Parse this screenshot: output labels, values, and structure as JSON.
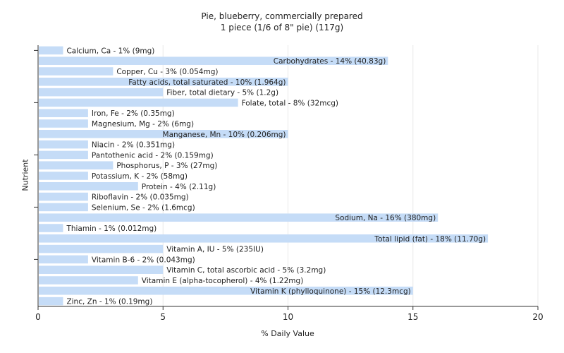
{
  "chart_data": {
    "type": "bar",
    "orientation": "horizontal",
    "title": "Pie, blueberry, commercially prepared",
    "subtitle": "1 piece (1/6 of 8\" pie) (117g)",
    "xlabel": "% Daily Value",
    "ylabel": "Nutrient",
    "xlim": [
      0,
      20
    ],
    "xticks": [
      0,
      5,
      10,
      15,
      20
    ],
    "grid": "vertical",
    "bar_color": "#c5dcf7",
    "bars": [
      {
        "value": 1,
        "label": "Calcium, Ca - 1% (9mg)"
      },
      {
        "value": 14,
        "label": "Carbohydrates - 14% (40.83g)"
      },
      {
        "value": 3,
        "label": "Copper, Cu - 3% (0.054mg)"
      },
      {
        "value": 10,
        "label": "Fatty acids, total saturated - 10% (1.964g)"
      },
      {
        "value": 5,
        "label": "Fiber, total dietary - 5% (1.2g)"
      },
      {
        "value": 8,
        "label": "Folate, total - 8% (32mcg)"
      },
      {
        "value": 2,
        "label": "Iron, Fe - 2% (0.35mg)"
      },
      {
        "value": 2,
        "label": "Magnesium, Mg - 2% (6mg)"
      },
      {
        "value": 10,
        "label": "Manganese, Mn - 10% (0.206mg)"
      },
      {
        "value": 2,
        "label": "Niacin - 2% (0.351mg)"
      },
      {
        "value": 2,
        "label": "Pantothenic acid - 2% (0.159mg)"
      },
      {
        "value": 3,
        "label": "Phosphorus, P - 3% (27mg)"
      },
      {
        "value": 2,
        "label": "Potassium, K - 2% (58mg)"
      },
      {
        "value": 4,
        "label": "Protein - 4% (2.11g)"
      },
      {
        "value": 2,
        "label": "Riboflavin - 2% (0.035mg)"
      },
      {
        "value": 2,
        "label": "Selenium, Se - 2% (1.6mcg)"
      },
      {
        "value": 16,
        "label": "Sodium, Na - 16% (380mg)"
      },
      {
        "value": 1,
        "label": "Thiamin - 1% (0.012mg)"
      },
      {
        "value": 18,
        "label": "Total lipid (fat) - 18% (11.70g)"
      },
      {
        "value": 5,
        "label": "Vitamin A, IU - 5% (235IU)"
      },
      {
        "value": 2,
        "label": "Vitamin B-6 - 2% (0.043mg)"
      },
      {
        "value": 5,
        "label": "Vitamin C, total ascorbic acid - 5% (3.2mg)"
      },
      {
        "value": 4,
        "label": "Vitamin E (alpha-tocopherol) - 4% (1.22mg)"
      },
      {
        "value": 15,
        "label": "Vitamin K (phylloquinone) - 15% (12.3mcg)"
      },
      {
        "value": 1,
        "label": "Zinc, Zn - 1% (0.19mg)"
      }
    ]
  }
}
